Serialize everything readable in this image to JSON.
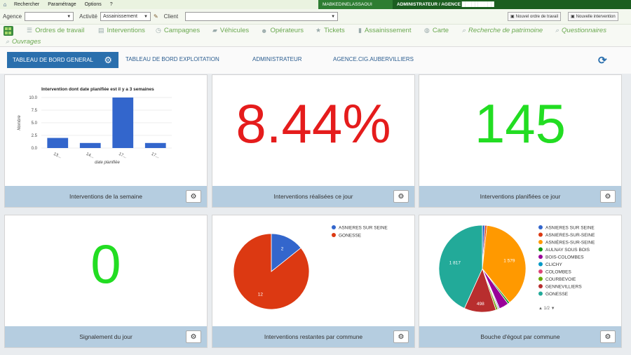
{
  "menubar": {
    "items": [
      "Rechercher",
      "Paramétrage",
      "Options",
      "?"
    ],
    "user": "MABKEDINELASSAOUI",
    "role": "ADMINISTRATEUR / AGENCE ██████████"
  },
  "filters": {
    "agence_label": "Agence",
    "activite_label": "Activité",
    "activite_value": "Assainissement",
    "client_label": "Client",
    "new_order": "Nouvel ordre de travail",
    "new_intervention": "Nouvelle intervention"
  },
  "nav": {
    "items": [
      "Ordres de travail",
      "Interventions",
      "Campagnes",
      "Véhicules",
      "Opérateurs",
      "Tickets",
      "Assainissement",
      "Carte",
      "Recherche de patrimoine",
      "Questionnaires"
    ],
    "row2": "Ouvrages"
  },
  "tabs": {
    "active": "TABLEAU DE BORD GENERAL",
    "others": [
      "TABLEAU DE BORD EXPLOITATION",
      "ADMINISTRATEUR",
      "AGENCE.CIG.AUBERVILLIERS"
    ]
  },
  "cards": [
    {
      "title": "Interventions de la semaine"
    },
    {
      "title": "Interventions réalisées ce jour",
      "value": "8.44%",
      "color": "#e51c1c"
    },
    {
      "title": "Interventions planifiées ce jour",
      "value": "145",
      "color": "#22dd22"
    },
    {
      "title": "Signalement du jour",
      "value": "0",
      "color": "#22dd22"
    },
    {
      "title": "Interventions restantes par commune"
    },
    {
      "title": "Bouche d'égout par commune"
    }
  ],
  "chart_data": [
    {
      "type": "bar",
      "title": "Intervention dont date planifiée est il y a 3 semaines",
      "xlabel": "date planifiée",
      "ylabel": "Nombre",
      "categories": [
        "13...",
        "14...",
        "17...",
        "17..."
      ],
      "values": [
        2,
        1,
        10,
        1
      ],
      "ylim": [
        0,
        10
      ],
      "yticks": [
        "0.0",
        "2.5",
        "5.0",
        "7.5",
        "10.0"
      ],
      "color": "#3366cc"
    },
    {
      "type": "pie",
      "legend": "right",
      "series": [
        {
          "name": "ASNIERES SUR SEINE",
          "value": 2,
          "color": "#3366cc"
        },
        {
          "name": "GONESSE",
          "value": 12,
          "color": "#dc3912"
        }
      ]
    },
    {
      "type": "pie",
      "legend": "right",
      "pager": "1/2",
      "series": [
        {
          "name": "ASNIERES SUR SEINE",
          "value": 40,
          "color": "#3366cc"
        },
        {
          "name": "ASNIERES-SUR-SEINE",
          "value": 30,
          "color": "#dc3912"
        },
        {
          "name": "ASNIÈRES-SUR-SEINE",
          "value": 1579,
          "color": "#ff9900"
        },
        {
          "name": "AULNAY SOUS BOIS",
          "value": 30,
          "color": "#109618"
        },
        {
          "name": "BOIS-COLOMBES",
          "value": 150,
          "color": "#990099"
        },
        {
          "name": "CLICHY",
          "value": 15,
          "color": "#0099c6"
        },
        {
          "name": "COLOMBES",
          "value": 15,
          "color": "#dd4477"
        },
        {
          "name": "COURBEVOIE",
          "value": 30,
          "color": "#66aa00"
        },
        {
          "name": "GENNEVILLIERS",
          "value": 498,
          "color": "#b82e2e"
        },
        {
          "name": "GONESSE",
          "value": 1817,
          "color": "#22aa99"
        }
      ],
      "labels": [
        "1 817",
        "498",
        "1 579"
      ]
    }
  ]
}
